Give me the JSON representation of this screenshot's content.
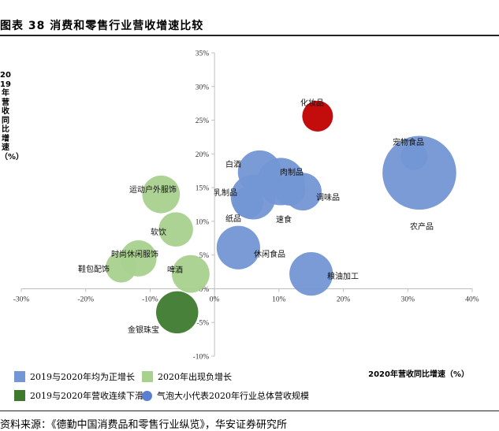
{
  "header": {
    "title": "图表 38 消费和零售行业营收增速比较"
  },
  "footer": {
    "source": "资料来源：《德勤中国消费品和零售行业纵览》，华安证券研究所"
  },
  "colors": {
    "positive": "#7396d4",
    "recovery": "#a9d18e",
    "decline": "#3e7a2e",
    "highlight": "#c00000",
    "size_legend": "#5b7fd0"
  },
  "legend": {
    "positive": "2019与2020年均为正增长",
    "recovery": "2020年出现负增长",
    "decline": "2019与2020年营收连续下滑",
    "size": "气泡大小代表2020年行业总体营收规模"
  },
  "chart_data": {
    "type": "scatter",
    "xlabel": "2020年营收同比增速（%）",
    "ylabel": "2019年营收同比增速（%）",
    "xlim": [
      -30,
      40
    ],
    "ylim": [
      -10,
      35
    ],
    "x_ticks": [
      -30,
      -20,
      -10,
      0,
      10,
      20,
      30,
      40
    ],
    "y_ticks": [
      -10,
      -5,
      0,
      5,
      10,
      15,
      20,
      25,
      30,
      35
    ],
    "x_tick_labels": [
      "-30%",
      "-20%",
      "-10%",
      "0%",
      "10%",
      "20%",
      "30%",
      "40%"
    ],
    "y_tick_labels": [
      "-10%",
      "-5%",
      "0%",
      "5%",
      "10%",
      "15%",
      "20%",
      "25%",
      "30%",
      "35%"
    ],
    "points": [
      {
        "name": "农产品",
        "x": 31.8,
        "y": 17.2,
        "size": 46,
        "group": "positive"
      },
      {
        "name": "宠物食品",
        "x": 31.0,
        "y": 19.6,
        "size": 6,
        "group": "positive"
      },
      {
        "name": "化妆品",
        "x": 16.0,
        "y": 25.6,
        "size": 8,
        "group": "highlight"
      },
      {
        "name": "粮油加工",
        "x": 15.0,
        "y": 2.2,
        "size": 16,
        "group": "positive"
      },
      {
        "name": "调味品",
        "x": 13.7,
        "y": 14.4,
        "size": 12,
        "group": "positive"
      },
      {
        "name": "速食",
        "x": 11.7,
        "y": 14.6,
        "size": 8,
        "group": "positive"
      },
      {
        "name": "肉制品",
        "x": 10.3,
        "y": 15.9,
        "size": 19,
        "group": "positive"
      },
      {
        "name": "白酒",
        "x": 7.0,
        "y": 17.3,
        "size": 16,
        "group": "positive"
      },
      {
        "name": "乳制品",
        "x": 6.0,
        "y": 13.6,
        "size": 17,
        "group": "positive"
      },
      {
        "name": "纸品",
        "x": 5.2,
        "y": 12.8,
        "size": 8,
        "group": "positive"
      },
      {
        "name": "休闲食品",
        "x": 3.7,
        "y": 6.1,
        "size": 16,
        "group": "positive"
      },
      {
        "name": "运动户外服饰",
        "x": -8.3,
        "y": 14.0,
        "size": 12,
        "group": "recovery"
      },
      {
        "name": "软饮",
        "x": -6.0,
        "y": 8.8,
        "size": 10,
        "group": "recovery"
      },
      {
        "name": "啤酒",
        "x": -3.7,
        "y": 2.2,
        "size": 12,
        "group": "recovery"
      },
      {
        "name": "时尚休闲服饰",
        "x": -11.8,
        "y": 4.5,
        "size": 11,
        "group": "recovery"
      },
      {
        "name": "鞋包配饰",
        "x": -14.5,
        "y": 3.2,
        "size": 8,
        "group": "recovery"
      },
      {
        "name": "金银珠宝",
        "x": -5.8,
        "y": -3.5,
        "size": 15,
        "group": "decline"
      }
    ]
  }
}
